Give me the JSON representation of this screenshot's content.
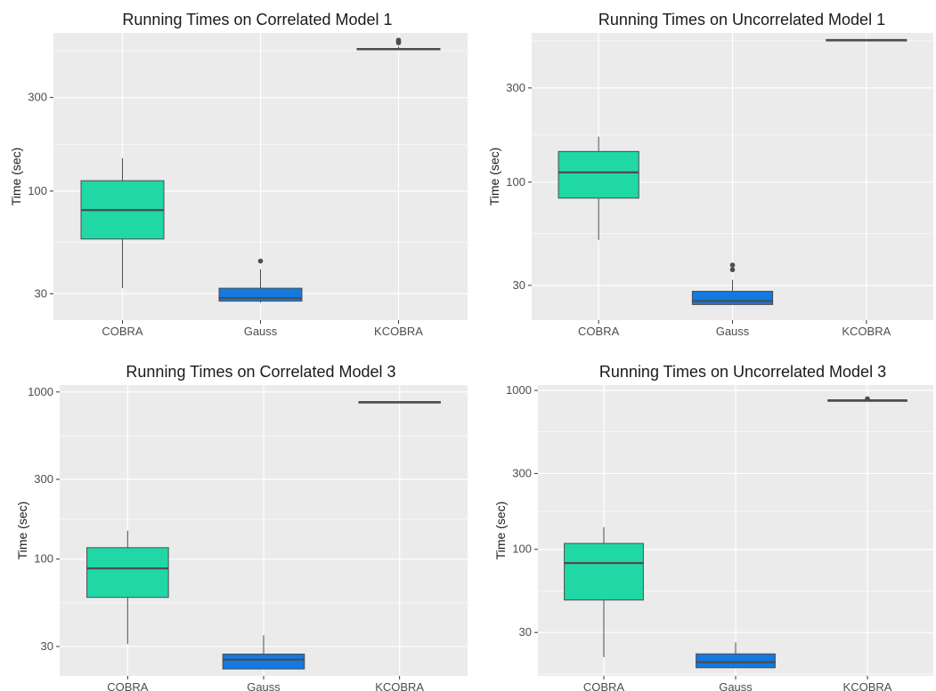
{
  "chart_data": [
    {
      "type": "boxplot",
      "title": "Running Times on Correlated Model 1",
      "xlabel": "",
      "ylabel": "Time (sec)",
      "yscale": "log",
      "ylim": [
        22,
        640
      ],
      "yticks": [
        30,
        100,
        300
      ],
      "grid": true,
      "categories": [
        "COBRA",
        "Gauss",
        "KCOBRA"
      ],
      "boxes": [
        {
          "category": "COBRA",
          "whisker_low": 32,
          "q1": 57,
          "median": 80,
          "q3": 113,
          "whisker_high": 147,
          "outliers": []
        },
        {
          "category": "Gauss",
          "whisker_low": 27,
          "q1": 27.5,
          "median": 28.5,
          "q3": 32,
          "whisker_high": 40,
          "outliers": [
            44
          ]
        },
        {
          "category": "KCOBRA",
          "whisker_low": 525,
          "q1": 527,
          "median": 530,
          "q3": 533,
          "whisker_high": 545,
          "outliers": [
            570,
            580,
            588
          ]
        }
      ]
    },
    {
      "type": "boxplot",
      "title": "Running Times on Uncorrelated Model 1",
      "xlabel": "",
      "ylabel": "Time (sec)",
      "yscale": "log",
      "ylim": [
        20,
        570
      ],
      "yticks": [
        30,
        100,
        300
      ],
      "grid": true,
      "categories": [
        "COBRA",
        "Gauss",
        "KCOBRA"
      ],
      "boxes": [
        {
          "category": "COBRA",
          "whisker_low": 51,
          "q1": 83,
          "median": 112,
          "q3": 143,
          "whisker_high": 170,
          "outliers": []
        },
        {
          "category": "Gauss",
          "whisker_low": 24,
          "q1": 24,
          "median": 25,
          "q3": 28,
          "whisker_high": 32,
          "outliers": [
            36,
            38
          ]
        },
        {
          "category": "KCOBRA",
          "whisker_low": 521,
          "q1": 523,
          "median": 525,
          "q3": 527,
          "whisker_high": 530,
          "outliers": []
        }
      ]
    },
    {
      "type": "boxplot",
      "title": "Running Times on Correlated Model 3",
      "xlabel": "",
      "ylabel": "Time (sec)",
      "yscale": "log",
      "ylim": [
        20,
        1100
      ],
      "yticks": [
        30,
        100,
        300,
        1000
      ],
      "grid": true,
      "categories": [
        "COBRA",
        "Gauss",
        "KCOBRA"
      ],
      "boxes": [
        {
          "category": "COBRA",
          "whisker_low": 31,
          "q1": 59,
          "median": 88,
          "q3": 117,
          "whisker_high": 148,
          "outliers": []
        },
        {
          "category": "Gauss",
          "whisker_low": 22,
          "q1": 22,
          "median": 25,
          "q3": 27,
          "whisker_high": 35,
          "outliers": []
        },
        {
          "category": "KCOBRA",
          "whisker_low": 862,
          "q1": 866,
          "median": 870,
          "q3": 875,
          "whisker_high": 880,
          "outliers": []
        }
      ]
    },
    {
      "type": "boxplot",
      "title": "Running Times on Uncorrelated Model 3",
      "xlabel": "",
      "ylabel": "Time (sec)",
      "yscale": "log",
      "ylim": [
        16,
        1080
      ],
      "yticks": [
        30,
        100,
        300,
        1000
      ],
      "grid": true,
      "categories": [
        "COBRA",
        "Gauss",
        "KCOBRA"
      ],
      "boxes": [
        {
          "category": "COBRA",
          "whisker_low": 21,
          "q1": 48,
          "median": 82,
          "q3": 109,
          "whisker_high": 138,
          "outliers": []
        },
        {
          "category": "Gauss",
          "whisker_low": 18,
          "q1": 18,
          "median": 19.5,
          "q3": 22,
          "whisker_high": 26,
          "outliers": []
        },
        {
          "category": "KCOBRA",
          "whisker_low": 858,
          "q1": 862,
          "median": 866,
          "q3": 870,
          "whisker_high": 875,
          "outliers": [
            885
          ]
        }
      ]
    }
  ],
  "colors": {
    "COBRA": "#1fd8a6",
    "Gauss": "#1479e0",
    "KCOBRA": "#1a5fb4",
    "panel_background": "#ebebeb",
    "grid_major": "#ffffff",
    "box_outline": "#4d4d4d"
  }
}
